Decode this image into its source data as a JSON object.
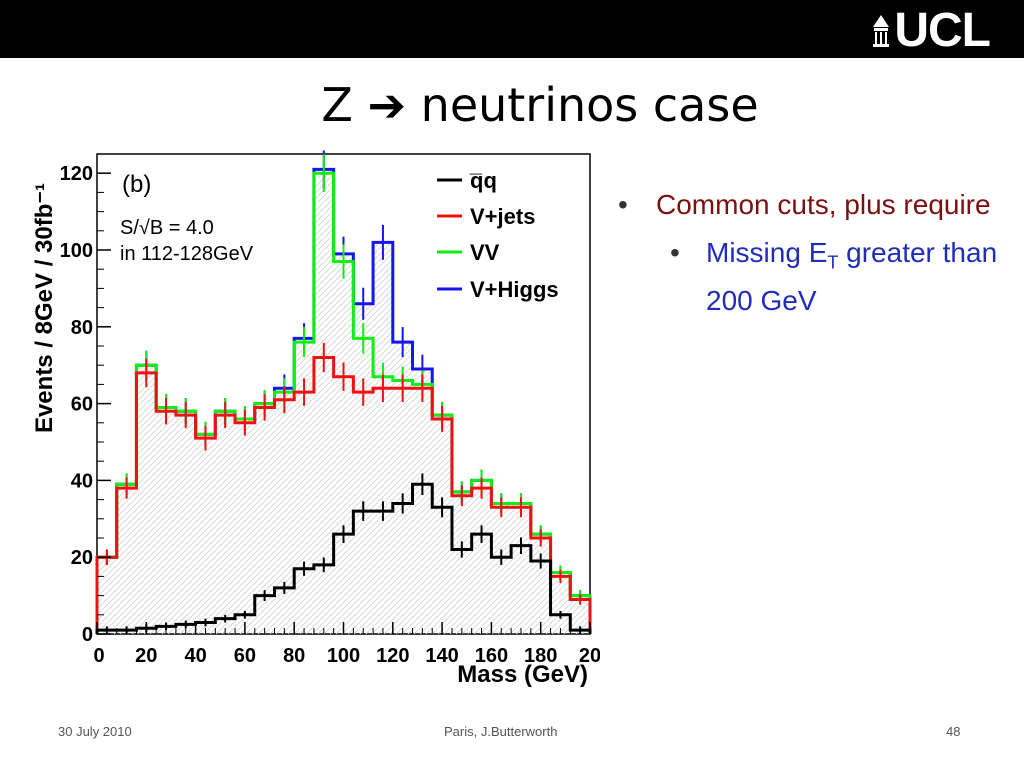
{
  "header": {
    "logo_text": "UCL",
    "logo_icon": "portico-icon"
  },
  "slide": {
    "title": "Z ➔ neutrinos case"
  },
  "bullets": {
    "main": "Common cuts, plus require",
    "sub_prefix": "Missing E",
    "sub_subscript": "T",
    "sub_suffix": " greater than 200 GeV"
  },
  "footer": {
    "date": "30 July 2010",
    "center": "Paris, J.Butterworth",
    "page": "48"
  },
  "colors": {
    "qq": "#000000",
    "vjets": "#ee1111",
    "vv": "#11ee11",
    "vhiggs": "#1515ee",
    "bullet_main": "#7b1010",
    "bullet_sub": "#1f2db8"
  },
  "chart_data": {
    "type": "line",
    "panel_label": "(b)",
    "annotation_line1": "S/√B = 4.0",
    "annotation_line2": "in 112-128GeV",
    "xlabel": "Mass (GeV)",
    "ylabel": "Events / 8GeV / 30fb⁻¹",
    "xlim": [
      0,
      200
    ],
    "ylim": [
      0,
      125
    ],
    "x_ticks": [
      "0",
      "20",
      "40",
      "60",
      "80",
      "100",
      "120",
      "140",
      "160",
      "180",
      "20"
    ],
    "y_ticks": [
      "0",
      "20",
      "40",
      "60",
      "80",
      "100",
      "120"
    ],
    "bin_edges": [
      0,
      8,
      16,
      24,
      32,
      40,
      48,
      56,
      64,
      72,
      80,
      88,
      96,
      104,
      112,
      120,
      128,
      136,
      144,
      152,
      160,
      168,
      176,
      184,
      192,
      200
    ],
    "series": [
      {
        "name": "q̅q",
        "key": "qq",
        "values": [
          1,
          1,
          1.5,
          2,
          2.5,
          3,
          4,
          5,
          10,
          12,
          17,
          18,
          26,
          32,
          32,
          34,
          39,
          33,
          22,
          26,
          20,
          23,
          19,
          5,
          1
        ]
      },
      {
        "name": "V+jets",
        "key": "vjets",
        "values": [
          20,
          38,
          68,
          58,
          57,
          51,
          57,
          55,
          59,
          61,
          63,
          72,
          67,
          63,
          64,
          64,
          64,
          56,
          36,
          38,
          33,
          33,
          25,
          15,
          9
        ]
      },
      {
        "name": "VV",
        "key": "vv",
        "values": [
          20,
          39,
          70,
          59,
          58,
          52,
          58,
          56,
          60,
          63,
          76,
          120,
          97,
          77,
          67,
          66,
          65,
          57,
          37,
          40,
          34,
          34,
          26,
          16,
          10
        ]
      },
      {
        "name": "V+Higgs",
        "key": "vhiggs",
        "values": [
          20,
          39,
          70,
          59,
          58,
          52,
          58,
          56,
          60,
          64,
          77,
          121,
          99,
          86,
          102,
          76,
          69,
          57,
          37,
          40,
          34,
          34,
          26,
          16,
          10
        ]
      }
    ]
  }
}
